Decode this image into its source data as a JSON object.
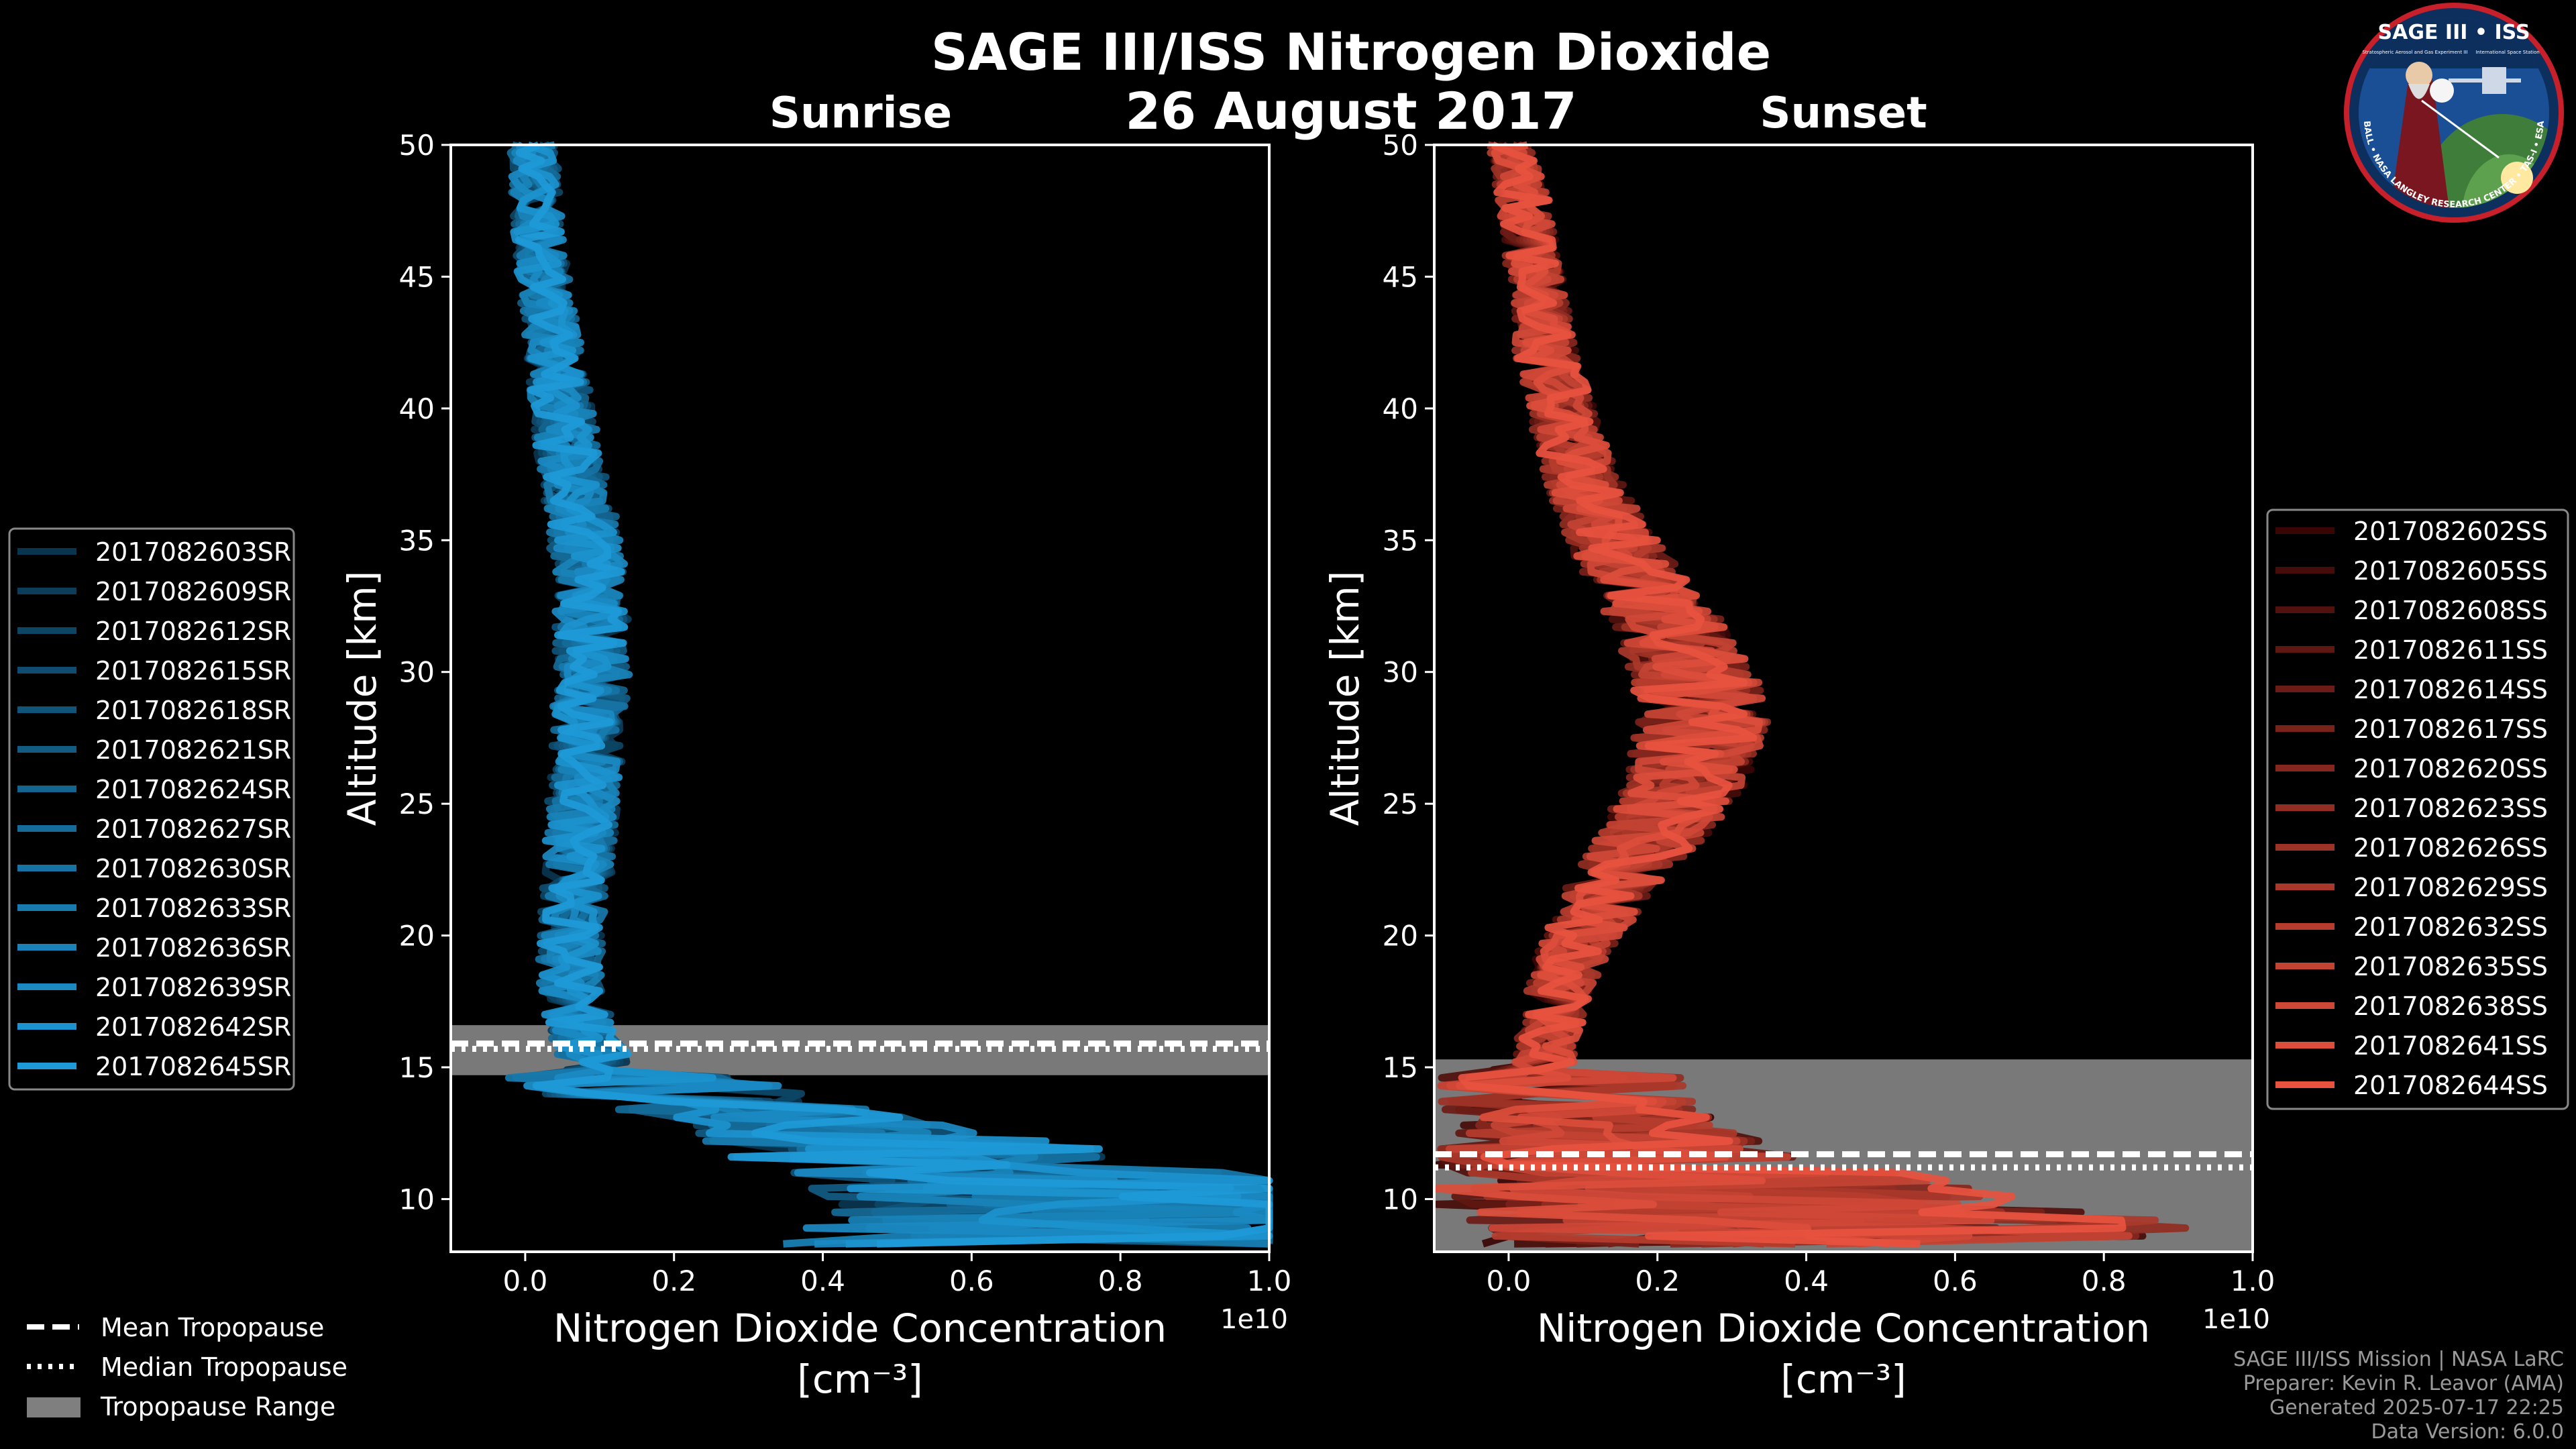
{
  "figure": {
    "title": "SAGE III/ISS Nitrogen Dioxide",
    "date": "26 August 2017",
    "logo": {
      "name": "SAGE III • ISS",
      "subtitle": "Stratospheric Aerosol and Gas Experiment III",
      "station": "International Space Station",
      "ring_text": "BALL • NASA LANGLEY RESEARCH CENTER • TAS-I • ESA"
    },
    "credits": [
      "SAGE III/ISS Mission | NASA LaRC",
      "Preparer: Kevin R. Leavor (AMA)",
      "Generated 2025-07-17 22:25",
      "Data Version: 6.0.0"
    ],
    "tropopause_legend": [
      {
        "label": "Mean Tropopause",
        "style": "dashed"
      },
      {
        "label": "Median Tropopause",
        "style": "dotted"
      },
      {
        "label": "Tropopause Range",
        "style": "patch"
      }
    ]
  },
  "chart_data": [
    {
      "type": "line",
      "title": "Sunrise",
      "xlabel": "Nitrogen Dioxide Concentration",
      "xunit": "[cm⁻³]",
      "ylabel": "Altitude [km]",
      "xlim": [
        -0.1,
        1.0
      ],
      "ylim": [
        8,
        50
      ],
      "x_scale_label": "1e10",
      "xticks": [
        0.0,
        0.2,
        0.4,
        0.6,
        0.8,
        1.0
      ],
      "yticks": [
        10,
        15,
        20,
        25,
        30,
        35,
        40,
        45,
        50
      ],
      "tropopause": {
        "mean": 15.9,
        "median": 15.7,
        "min": 14.7,
        "max": 16.6
      },
      "color_light": "#1E9AD8",
      "color_dark": "#0A3550",
      "profile": {
        "altitude_km": [
          8.5,
          10,
          11,
          12,
          13,
          14,
          15,
          16,
          17,
          18,
          19,
          20,
          22,
          24,
          26,
          28,
          30,
          32,
          34,
          36,
          38,
          40,
          42,
          44,
          46,
          48,
          50
        ],
        "no2_1e10": [
          0.9,
          0.8,
          0.65,
          0.5,
          0.35,
          0.2,
          0.1,
          0.08,
          0.07,
          0.06,
          0.06,
          0.06,
          0.07,
          0.075,
          0.08,
          0.085,
          0.09,
          0.09,
          0.085,
          0.075,
          0.06,
          0.05,
          0.04,
          0.03,
          0.02,
          0.015,
          0.01
        ]
      },
      "series": [
        {
          "name": "2017082603SR"
        },
        {
          "name": "2017082609SR"
        },
        {
          "name": "2017082612SR"
        },
        {
          "name": "2017082615SR"
        },
        {
          "name": "2017082618SR"
        },
        {
          "name": "2017082621SR"
        },
        {
          "name": "2017082624SR"
        },
        {
          "name": "2017082627SR"
        },
        {
          "name": "2017082630SR"
        },
        {
          "name": "2017082633SR"
        },
        {
          "name": "2017082636SR"
        },
        {
          "name": "2017082639SR"
        },
        {
          "name": "2017082642SR"
        },
        {
          "name": "2017082645SR"
        }
      ]
    },
    {
      "type": "line",
      "title": "Sunset",
      "xlabel": "Nitrogen Dioxide Concentration",
      "xunit": "[cm⁻³]",
      "ylabel": "Altitude [km]",
      "xlim": [
        -0.1,
        1.0
      ],
      "ylim": [
        8,
        50
      ],
      "x_scale_label": "1e10",
      "xticks": [
        0.0,
        0.2,
        0.4,
        0.6,
        0.8,
        1.0
      ],
      "yticks": [
        10,
        15,
        20,
        25,
        30,
        35,
        40,
        45,
        50
      ],
      "tropopause": {
        "mean": 11.7,
        "median": 11.2,
        "min": 8.0,
        "max": 15.3
      },
      "color_light": "#E8533F",
      "color_dark": "#3A0605",
      "profile": {
        "altitude_km": [
          8.5,
          10,
          11,
          12,
          13,
          14,
          15,
          16,
          17,
          18,
          19,
          20,
          22,
          24,
          26,
          28,
          30,
          32,
          34,
          36,
          38,
          40,
          42,
          44,
          46,
          48,
          50
        ],
        "no2_1e10": [
          0.5,
          0.3,
          0.2,
          0.15,
          0.1,
          0.07,
          0.05,
          0.05,
          0.06,
          0.07,
          0.08,
          0.1,
          0.14,
          0.2,
          0.24,
          0.26,
          0.25,
          0.21,
          0.16,
          0.12,
          0.09,
          0.07,
          0.05,
          0.04,
          0.03,
          0.02,
          0.0
        ]
      },
      "series": [
        {
          "name": "2017082602SS"
        },
        {
          "name": "2017082605SS"
        },
        {
          "name": "2017082608SS"
        },
        {
          "name": "2017082611SS"
        },
        {
          "name": "2017082614SS"
        },
        {
          "name": "2017082617SS"
        },
        {
          "name": "2017082620SS"
        },
        {
          "name": "2017082623SS"
        },
        {
          "name": "2017082626SS"
        },
        {
          "name": "2017082629SS"
        },
        {
          "name": "2017082632SS"
        },
        {
          "name": "2017082635SS"
        },
        {
          "name": "2017082638SS"
        },
        {
          "name": "2017082641SS"
        },
        {
          "name": "2017082644SS"
        }
      ]
    }
  ]
}
